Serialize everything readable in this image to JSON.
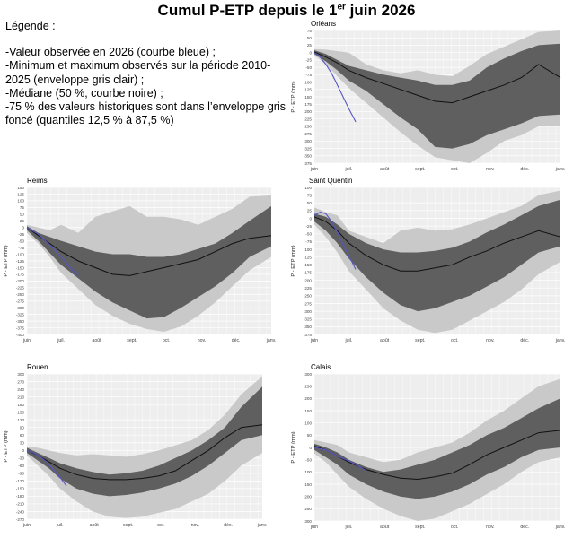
{
  "title_main": "Cumul P-ETP depuis le 1",
  "title_sup": "er",
  "title_tail": " juin 2026",
  "legend": {
    "heading": "Légende :",
    "items": [
      "-Valeur observée en 2026 (courbe bleue) ;",
      "-Minimum et maximum observés sur la période 2010-2025 (enveloppe gris clair) ;",
      "-Médiane (50 %, courbe noire) ;",
      "-75 % des valeurs historiques sont dans l’enveloppe gris foncé (quantiles 12,5 % à 87,5 %)"
    ]
  },
  "colors": {
    "light_band": "#c9c9c9",
    "dark_band": "#5f5f5f",
    "median": "#111111",
    "observed": "#5555c8",
    "panel_bg": "#eeeeee"
  },
  "chart_data": [
    {
      "type": "area",
      "title": "Orléans",
      "ylabel": "P - ETP (mm)",
      "x_ticks": [
        "juin",
        "juil.",
        "août",
        "sept.",
        "oct.",
        "nov.",
        "déc.",
        "janv."
      ],
      "ylim": [
        -375,
        75
      ],
      "y_ticks": [
        75,
        50,
        25,
        0,
        -25,
        -50,
        -75,
        -100,
        -125,
        -150,
        -175,
        -200,
        -225,
        -250,
        -275,
        -300,
        -325,
        -350,
        -375
      ],
      "x_days": [
        0,
        10,
        20,
        30,
        45,
        60,
        75,
        90,
        105,
        120,
        135,
        150,
        165,
        180,
        195,
        214
      ],
      "max": [
        12,
        10,
        5,
        0,
        -40,
        -60,
        -70,
        -60,
        -75,
        -80,
        -45,
        -5,
        20,
        45,
        70,
        75
      ],
      "q875": [
        8,
        -5,
        -25,
        -45,
        -60,
        -75,
        -85,
        -95,
        -110,
        -110,
        -95,
        -50,
        -20,
        5,
        25,
        30
      ],
      "median": [
        2,
        -15,
        -35,
        -60,
        -85,
        -105,
        -125,
        -145,
        -165,
        -170,
        -150,
        -130,
        -110,
        -85,
        -40,
        -85
      ],
      "q125": [
        -5,
        -30,
        -60,
        -95,
        -130,
        -175,
        -220,
        -260,
        -320,
        -325,
        -310,
        -280,
        -260,
        -240,
        -215,
        -210
      ],
      "min": [
        -10,
        -40,
        -80,
        -120,
        -170,
        -220,
        -270,
        -315,
        -355,
        -365,
        -375,
        -340,
        -300,
        -280,
        -250,
        -250
      ],
      "observed_x": [
        0,
        5,
        10,
        15,
        20,
        25,
        30,
        36
      ],
      "observed": [
        0,
        -15,
        -40,
        -70,
        -110,
        -150,
        -190,
        -235
      ]
    },
    {
      "type": "area",
      "title": "Reims",
      "ylabel": "P - ETP (mm)",
      "x_ticks": [
        "juin",
        "juil.",
        "août",
        "sept.",
        "oct.",
        "nov.",
        "déc.",
        "janv."
      ],
      "ylim": [
        -400,
        150
      ],
      "y_ticks": [
        150,
        125,
        100,
        75,
        50,
        25,
        0,
        -25,
        -50,
        -75,
        -100,
        -125,
        -150,
        -175,
        -200,
        -225,
        -250,
        -275,
        -300,
        -325,
        -350,
        -375,
        -400
      ],
      "x_days": [
        0,
        10,
        20,
        30,
        45,
        60,
        75,
        90,
        105,
        120,
        135,
        150,
        165,
        180,
        195,
        214
      ],
      "max": [
        10,
        0,
        -10,
        10,
        -20,
        40,
        60,
        80,
        40,
        40,
        30,
        10,
        40,
        70,
        115,
        120
      ],
      "q875": [
        5,
        -20,
        -35,
        -50,
        -70,
        -90,
        -100,
        -100,
        -110,
        -110,
        -100,
        -80,
        -60,
        -20,
        25,
        80
      ],
      "median": [
        0,
        -30,
        -60,
        -90,
        -125,
        -150,
        -175,
        -180,
        -165,
        -150,
        -135,
        -120,
        -90,
        -60,
        -40,
        -30
      ],
      "q125": [
        -10,
        -50,
        -95,
        -140,
        -190,
        -240,
        -280,
        -310,
        -340,
        -335,
        -300,
        -260,
        -220,
        -170,
        -110,
        -70
      ],
      "min": [
        -20,
        -60,
        -110,
        -170,
        -230,
        -290,
        -330,
        -360,
        -380,
        -390,
        -370,
        -330,
        -280,
        -220,
        -160,
        -110
      ],
      "observed_x": [
        0,
        10,
        20,
        30,
        40,
        45
      ],
      "observed": [
        0,
        -25,
        -65,
        -110,
        -160,
        -180
      ]
    },
    {
      "type": "area",
      "title": "Saint Quentin",
      "ylabel": "P - ETP (mm)",
      "x_ticks": [
        "juin",
        "juil.",
        "août",
        "sept.",
        "oct.",
        "nov.",
        "déc.",
        "janv."
      ],
      "ylim": [
        -375,
        100
      ],
      "y_ticks": [
        100,
        75,
        50,
        25,
        0,
        -25,
        -50,
        -75,
        -100,
        -125,
        -150,
        -175,
        -200,
        -225,
        -250,
        -275,
        -300,
        -325,
        -350,
        -375
      ],
      "x_days": [
        0,
        10,
        20,
        30,
        45,
        60,
        75,
        90,
        105,
        120,
        135,
        150,
        165,
        180,
        195,
        214
      ],
      "max": [
        35,
        20,
        10,
        -40,
        -60,
        -80,
        -40,
        -30,
        -40,
        -35,
        -20,
        0,
        20,
        40,
        75,
        90
      ],
      "q875": [
        15,
        5,
        -20,
        -50,
        -80,
        -100,
        -110,
        -110,
        -105,
        -95,
        -75,
        -45,
        -20,
        10,
        40,
        60
      ],
      "median": [
        5,
        -10,
        -40,
        -80,
        -120,
        -150,
        -170,
        -170,
        -160,
        -150,
        -125,
        -105,
        -80,
        -60,
        -40,
        -60
      ],
      "q125": [
        -10,
        -40,
        -80,
        -130,
        -190,
        -240,
        -280,
        -300,
        -290,
        -270,
        -250,
        -220,
        -190,
        -150,
        -110,
        -90
      ],
      "min": [
        -20,
        -60,
        -110,
        -170,
        -230,
        -290,
        -330,
        -360,
        -370,
        -360,
        -330,
        -300,
        -270,
        -230,
        -180,
        -140
      ],
      "observed_x": [
        0,
        5,
        10,
        15,
        20,
        25,
        30,
        36
      ],
      "observed": [
        10,
        20,
        15,
        -10,
        -45,
        -85,
        -120,
        -165
      ]
    },
    {
      "type": "area",
      "title": "Rouen",
      "ylabel": "P - ETP (mm)",
      "x_ticks": [
        "juin",
        "juil.",
        "août",
        "sept.",
        "oct.",
        "nov.",
        "déc.",
        "janv."
      ],
      "ylim": [
        -270,
        300
      ],
      "y_ticks": [
        300,
        270,
        240,
        210,
        180,
        150,
        120,
        90,
        60,
        30,
        0,
        -30,
        -60,
        -90,
        -120,
        -150,
        -180,
        -210,
        -240,
        -270
      ],
      "x_days": [
        0,
        10,
        20,
        30,
        45,
        60,
        75,
        90,
        105,
        120,
        135,
        150,
        165,
        180,
        195,
        214
      ],
      "max": [
        15,
        10,
        0,
        -10,
        -20,
        -15,
        -20,
        -25,
        -15,
        0,
        20,
        40,
        80,
        140,
        220,
        290
      ],
      "q875": [
        10,
        -10,
        -30,
        -50,
        -70,
        -85,
        -95,
        -90,
        -80,
        -60,
        -30,
        0,
        40,
        90,
        170,
        250
      ],
      "median": [
        0,
        -20,
        -45,
        -70,
        -95,
        -110,
        -115,
        -115,
        -110,
        -100,
        -80,
        -40,
        0,
        50,
        90,
        100
      ],
      "q125": [
        -10,
        -40,
        -70,
        -110,
        -150,
        -170,
        -180,
        -175,
        -165,
        -150,
        -130,
        -100,
        -60,
        -10,
        40,
        60
      ],
      "min": [
        -20,
        -60,
        -100,
        -150,
        -200,
        -240,
        -260,
        -265,
        -260,
        -245,
        -230,
        -200,
        -170,
        -120,
        -60,
        -10
      ],
      "observed_x": [
        0,
        6,
        12,
        18,
        24,
        30,
        36
      ],
      "observed": [
        0,
        -10,
        -25,
        -45,
        -75,
        -105,
        -140
      ]
    },
    {
      "type": "area",
      "title": "Calais",
      "ylabel": "P - ETP (mm)",
      "x_ticks": [
        "juin",
        "juil.",
        "août",
        "sept.",
        "oct.",
        "nov.",
        "déc.",
        "janv."
      ],
      "ylim": [
        -300,
        300
      ],
      "y_ticks": [
        300,
        250,
        200,
        150,
        100,
        50,
        0,
        -50,
        -100,
        -150,
        -200,
        -250,
        -300
      ],
      "x_days": [
        0,
        10,
        20,
        30,
        45,
        60,
        75,
        90,
        105,
        120,
        135,
        150,
        165,
        180,
        195,
        214
      ],
      "max": [
        30,
        20,
        10,
        -20,
        -40,
        -60,
        -50,
        -20,
        0,
        20,
        60,
        110,
        150,
        200,
        250,
        280
      ],
      "q875": [
        15,
        0,
        -20,
        -50,
        -80,
        -100,
        -90,
        -70,
        -50,
        -20,
        10,
        50,
        80,
        120,
        160,
        200
      ],
      "median": [
        5,
        -10,
        -35,
        -60,
        -90,
        -110,
        -125,
        -130,
        -120,
        -105,
        -70,
        -30,
        0,
        30,
        60,
        70
      ],
      "q125": [
        -10,
        -40,
        -70,
        -110,
        -150,
        -180,
        -200,
        -210,
        -200,
        -180,
        -150,
        -110,
        -80,
        -40,
        -10,
        0
      ],
      "min": [
        -25,
        -60,
        -110,
        -160,
        -210,
        -250,
        -280,
        -300,
        -290,
        -260,
        -230,
        -190,
        -150,
        -100,
        -60,
        -40
      ],
      "observed_x": [
        0,
        10,
        20,
        30,
        40,
        45
      ],
      "observed": [
        0,
        -10,
        -35,
        -55,
        -80,
        -95
      ]
    }
  ]
}
